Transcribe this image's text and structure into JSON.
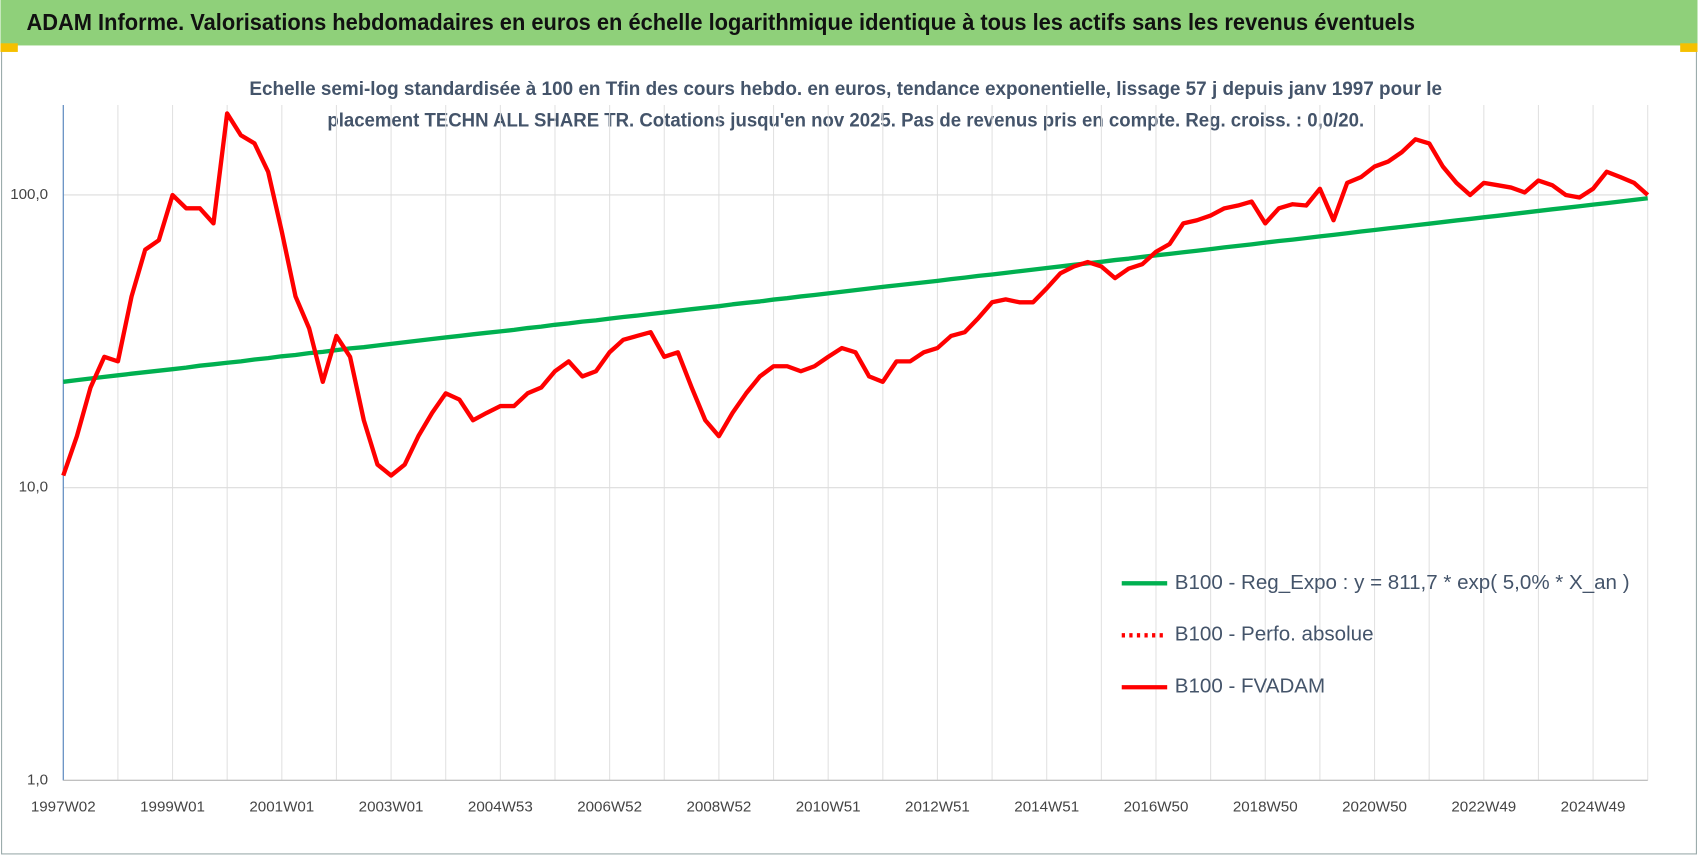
{
  "chart_data": {
    "type": "line",
    "title": "ADAM Informe. Valorisations hebdomadaires en euros en échelle logarithmique identique à tous les actifs sans les revenus éventuels",
    "subtitle": [
      "Echelle semi-log standardisée à 100 en Tfin des cours hebdo. en euros, tendance exponentielle, lissage 57 j depuis janv 1997 pour le",
      "placement TECHN ALL SHARE TR. Cotations jusqu'en nov 2025. Pas de revenus pris en compte. Reg. croiss. : 0,0/20."
    ],
    "categories": [
      "1997W02",
      null,
      null,
      null,
      null,
      null,
      null,
      null,
      "1999W01",
      null,
      null,
      null,
      null,
      null,
      null,
      null,
      "2001W01",
      null,
      null,
      null,
      null,
      null,
      null,
      null,
      "2003W01",
      null,
      null,
      null,
      null,
      null,
      null,
      null,
      "2004W53",
      null,
      null,
      null,
      null,
      null,
      null,
      null,
      "2006W52",
      null,
      null,
      null,
      null,
      null,
      null,
      null,
      "2008W52",
      null,
      null,
      null,
      null,
      null,
      null,
      null,
      "2010W51",
      null,
      null,
      null,
      null,
      null,
      null,
      null,
      "2012W51",
      null,
      null,
      null,
      null,
      null,
      null,
      null,
      "2014W51",
      null,
      null,
      null,
      null,
      null,
      null,
      null,
      "2016W50",
      null,
      null,
      null,
      null,
      null,
      null,
      null,
      "2018W50",
      null,
      null,
      null,
      null,
      null,
      null,
      null,
      "2020W50",
      null,
      null,
      null,
      null,
      null,
      null,
      null,
      "2022W49",
      null,
      null,
      null,
      null,
      null,
      null,
      null,
      "2024W49",
      null,
      null,
      null,
      null
    ],
    "log_scale": true,
    "ylim": [
      1,
      203
    ],
    "yticks": [
      {
        "value": 1,
        "label": "1,0"
      },
      {
        "value": 10,
        "label": "10,0"
      },
      {
        "value": 100,
        "label": "100,0"
      }
    ],
    "grid": true,
    "legend": "lower-right",
    "series": [
      {
        "name": "B100 - Reg_Expo : y = 811,7 * exp( 5,0% *  X_an )",
        "color": "#00b050",
        "style": "solid",
        "values": [
          23.0,
          23.3,
          23.6,
          23.9,
          24.2,
          24.5,
          24.8,
          25.1,
          25.4,
          25.7,
          26.1,
          26.4,
          26.7,
          27.0,
          27.4,
          27.7,
          28.1,
          28.4,
          28.8,
          29.1,
          29.5,
          29.9,
          30.2,
          30.6,
          31.0,
          31.4,
          31.8,
          32.2,
          32.6,
          33.0,
          33.4,
          33.8,
          34.2,
          34.6,
          35.1,
          35.5,
          36.0,
          36.4,
          36.9,
          37.3,
          37.8,
          38.3,
          38.7,
          39.2,
          39.7,
          40.2,
          40.7,
          41.2,
          41.7,
          42.3,
          42.8,
          43.3,
          43.9,
          44.4,
          45.0,
          45.5,
          46.1,
          46.7,
          47.3,
          47.9,
          48.5,
          49.1,
          49.7,
          50.3,
          50.9,
          51.6,
          52.2,
          52.9,
          53.5,
          54.2,
          54.9,
          55.6,
          56.3,
          57.0,
          57.7,
          58.4,
          59.1,
          59.9,
          60.6,
          61.4,
          62.2,
          62.9,
          63.7,
          64.5,
          65.3,
          66.2,
          67.0,
          67.8,
          68.7,
          69.6,
          70.4,
          71.3,
          72.2,
          73.1,
          74.0,
          75.0,
          75.9,
          76.9,
          77.8,
          78.8,
          79.8,
          80.8,
          81.8,
          82.8,
          83.9,
          84.9,
          86.0,
          87.1,
          88.2,
          89.3,
          90.4,
          91.5,
          92.7,
          93.8,
          95.0,
          96.2,
          97.4
        ]
      },
      {
        "name": "B100 - Perfo. absolue",
        "color": "#ff0000",
        "style": "dotted"
      },
      {
        "name": "B100 - FVADAM",
        "color": "#ff0000",
        "style": "solid",
        "values": [
          11,
          15,
          22,
          28,
          27,
          45,
          65,
          70,
          100,
          90,
          90,
          80,
          190,
          160,
          150,
          120,
          75,
          45,
          35,
          23,
          33,
          28,
          17,
          12,
          11,
          12,
          15,
          18,
          21,
          20,
          17,
          18,
          19,
          19,
          21,
          22,
          25,
          27,
          24,
          25,
          29,
          32,
          33,
          34,
          28,
          29,
          22,
          17,
          15,
          18,
          21,
          24,
          26,
          26,
          25,
          26,
          28,
          30,
          29,
          24,
          23,
          27,
          27,
          29,
          30,
          33,
          34,
          38,
          43,
          44,
          43,
          43,
          48,
          54,
          57,
          59,
          57,
          52,
          56,
          58,
          64,
          68,
          80,
          82,
          85,
          90,
          92,
          95,
          80,
          90,
          93,
          92,
          105,
          82,
          110,
          115,
          125,
          130,
          140,
          155,
          150,
          125,
          110,
          100,
          110,
          108,
          106,
          102,
          112,
          108,
          100,
          98,
          105,
          120,
          115,
          110,
          100
        ]
      }
    ]
  }
}
